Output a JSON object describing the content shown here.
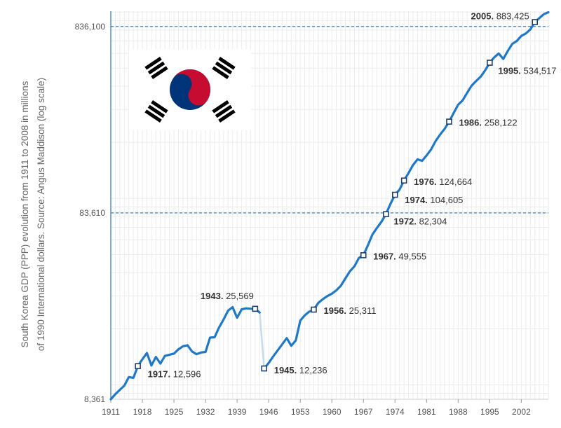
{
  "chart_data": {
    "type": "line",
    "title": "",
    "ylabel_line1": "South Korea GDP (PPP) evolution from 1911 to 2008 in millions",
    "ylabel_line2": "of 1990 International dollars. Source: Angus Maddison (log scale)",
    "y_scale": "log",
    "ylim": [
      8361,
      1010000
    ],
    "xlim": [
      1911,
      2008
    ],
    "x_ticks": [
      "1911",
      "1918",
      "1925",
      "1932",
      "1939",
      "1946",
      "1953",
      "1960",
      "1967",
      "1974",
      "1981",
      "1988",
      "1995",
      "2002"
    ],
    "y_ticks": [
      "8,361",
      "83,610",
      "836,100"
    ],
    "reference_lines": [
      83610,
      836100
    ],
    "grid": true,
    "line_color": "#1f78c8",
    "gap_color": "#c5dcef",
    "series": [
      {
        "segments": [
          {
            "x": [
              1911,
              1912,
              1913,
              1914,
              1915,
              1916,
              1917,
              1918,
              1919,
              1920,
              1921,
              1922,
              1923,
              1924,
              1925,
              1926,
              1927,
              1928,
              1929,
              1930,
              1931,
              1932,
              1933,
              1934,
              1935,
              1936,
              1937,
              1938,
              1939,
              1940,
              1941,
              1942,
              1943,
              1944
            ],
            "y": [
              8361,
              8900,
              9400,
              9900,
              11000,
              10900,
              12596,
              13700,
              14800,
              12700,
              14100,
              13000,
              14300,
              14500,
              14700,
              15500,
              16100,
              16300,
              15100,
              14600,
              14900,
              15000,
              17900,
              18000,
              20300,
              22400,
              25000,
              26100,
              22900,
              25400,
              25700,
              25600,
              25569,
              24400
            ]
          },
          {
            "x": [
              1945,
              1946,
              1947,
              1948,
              1949,
              1950,
              1951,
              1952,
              1953,
              1954,
              1955,
              1956,
              1957,
              1958,
              1959,
              1960,
              1961,
              1962,
              1963,
              1964,
              1965,
              1966,
              1967,
              1968,
              1969,
              1970,
              1971,
              1972,
              1973,
              1974,
              1975,
              1976,
              1977,
              1978,
              1979,
              1980,
              1981,
              1982,
              1983,
              1984,
              1985,
              1986,
              1987,
              1988,
              1989,
              1990,
              1991,
              1992,
              1993,
              1994,
              1995,
              1996,
              1997,
              1998,
              1999,
              2000,
              2001,
              2002,
              2003,
              2004,
              2005,
              2006,
              2007,
              2008
            ],
            "y": [
              12236,
              13100,
              14200,
              15300,
              16500,
              17800,
              16200,
              17300,
              22100,
              23600,
              24700,
              25311,
              27500,
              28800,
              29900,
              30800,
              32100,
              34000,
              37200,
              40600,
              43200,
              47900,
              49555,
              56100,
              64000,
              69400,
              75000,
              82304,
              93500,
              104605,
              111400,
              124664,
              137000,
              151000,
              162000,
              159000,
              170000,
              183000,
              203000,
              220000,
              236000,
              258122,
              287000,
              318000,
              336000,
              369000,
              403000,
              427000,
              450000,
              487000,
              534517,
              571000,
              599000,
              560000,
              618000,
              675000,
              699000,
              744000,
              767000,
              806000,
              883425,
              928000,
              974000,
              997000
            ]
          }
        ]
      }
    ],
    "annotations": [
      {
        "year": 1917,
        "value": 12596,
        "year_label": "1917.",
        "value_label": "12,596"
      },
      {
        "year": 1943,
        "value": 25569,
        "year_label": "1943.",
        "value_label": "25,569"
      },
      {
        "year": 1945,
        "value": 12236,
        "year_label": "1945.",
        "value_label": "12,236"
      },
      {
        "year": 1956,
        "value": 25311,
        "year_label": "1956.",
        "value_label": "25,311"
      },
      {
        "year": 1967,
        "value": 49555,
        "year_label": "1967.",
        "value_label": "49,555"
      },
      {
        "year": 1972,
        "value": 82304,
        "year_label": "1972.",
        "value_label": "82,304"
      },
      {
        "year": 1974,
        "value": 104605,
        "year_label": "1974.",
        "value_label": "104,605"
      },
      {
        "year": 1976,
        "value": 124664,
        "year_label": "1976.",
        "value_label": "124,664"
      },
      {
        "year": 1986,
        "value": 258122,
        "year_label": "1986.",
        "value_label": "258,122"
      },
      {
        "year": 1995,
        "value": 534517,
        "year_label": "1995.",
        "value_label": "534,517"
      },
      {
        "year": 2005,
        "value": 883425,
        "year_label": "2005.",
        "value_label": "883,425"
      }
    ]
  },
  "flag": {
    "name": "South Korea flag",
    "colors": {
      "red": "#c60c30",
      "blue": "#003478",
      "black": "#000000",
      "white": "#ffffff"
    }
  }
}
